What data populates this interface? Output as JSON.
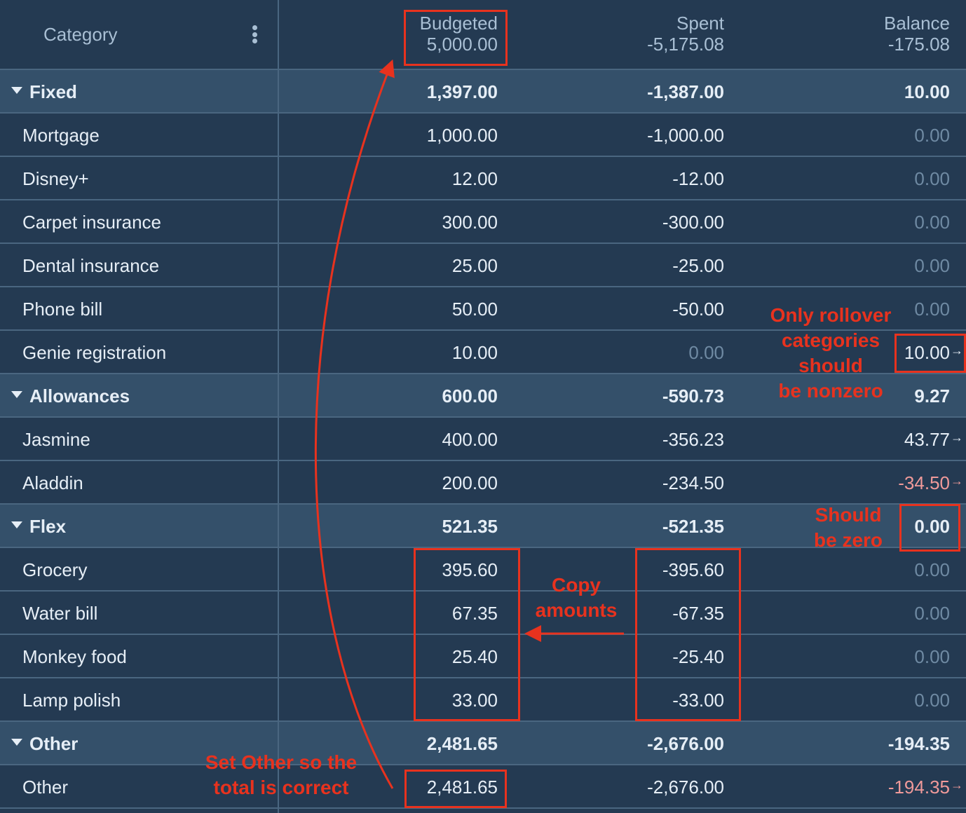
{
  "header": {
    "category_label": "Category",
    "menu_icon": "kebab-menu-icon",
    "columns": [
      {
        "label": "Budgeted",
        "total": "5,000.00"
      },
      {
        "label": "Spent",
        "total": "-5,175.08"
      },
      {
        "label": "Balance",
        "total": "-175.08"
      }
    ]
  },
  "rows": [
    {
      "type": "group",
      "name": "Fixed",
      "budgeted": "1,397.00",
      "spent": "-1,387.00",
      "balance": "10.00"
    },
    {
      "type": "item",
      "name": "Mortgage",
      "budgeted": "1,000.00",
      "spent": "-1,000.00",
      "balance": "0.00"
    },
    {
      "type": "item",
      "name": "Disney+",
      "budgeted": "12.00",
      "spent": "-12.00",
      "balance": "0.00"
    },
    {
      "type": "item",
      "name": "Carpet insurance",
      "budgeted": "300.00",
      "spent": "-300.00",
      "balance": "0.00"
    },
    {
      "type": "item",
      "name": "Dental insurance",
      "budgeted": "25.00",
      "spent": "-25.00",
      "balance": "0.00"
    },
    {
      "type": "item",
      "name": "Phone bill",
      "budgeted": "50.00",
      "spent": "-50.00",
      "balance": "0.00"
    },
    {
      "type": "item",
      "name": "Genie registration",
      "budgeted": "10.00",
      "spent": "0.00",
      "balance": "10.00",
      "rollover": true
    },
    {
      "type": "group",
      "name": "Allowances",
      "budgeted": "600.00",
      "spent": "-590.73",
      "balance": "9.27"
    },
    {
      "type": "item",
      "name": "Jasmine",
      "budgeted": "400.00",
      "spent": "-356.23",
      "balance": "43.77",
      "rollover": true
    },
    {
      "type": "item",
      "name": "Aladdin",
      "budgeted": "200.00",
      "spent": "-234.50",
      "balance": "-34.50",
      "rollover": true
    },
    {
      "type": "group",
      "name": "Flex",
      "budgeted": "521.35",
      "spent": "-521.35",
      "balance": "0.00"
    },
    {
      "type": "item",
      "name": "Grocery",
      "budgeted": "395.60",
      "spent": "-395.60",
      "balance": "0.00"
    },
    {
      "type": "item",
      "name": "Water bill",
      "budgeted": "67.35",
      "spent": "-67.35",
      "balance": "0.00"
    },
    {
      "type": "item",
      "name": "Monkey food",
      "budgeted": "25.40",
      "spent": "-25.40",
      "balance": "0.00"
    },
    {
      "type": "item",
      "name": "Lamp polish",
      "budgeted": "33.00",
      "spent": "-33.00",
      "balance": "0.00"
    },
    {
      "type": "group",
      "name": "Other",
      "budgeted": "2,481.65",
      "spent": "-2,676.00",
      "balance": "-194.35"
    },
    {
      "type": "item",
      "name": "Other",
      "budgeted": "2,481.65",
      "spent": "-2,676.00",
      "balance": "-194.35",
      "rollover": true
    }
  ],
  "annotations": {
    "rollover_note": [
      "Only rollover",
      "categories",
      "should",
      "be nonzero"
    ],
    "zero_note": [
      "Should",
      "be zero"
    ],
    "copy_note": [
      "Copy",
      "amounts"
    ],
    "other_note": [
      "Set Other so the",
      "total is correct"
    ],
    "color": "#e8321e"
  }
}
